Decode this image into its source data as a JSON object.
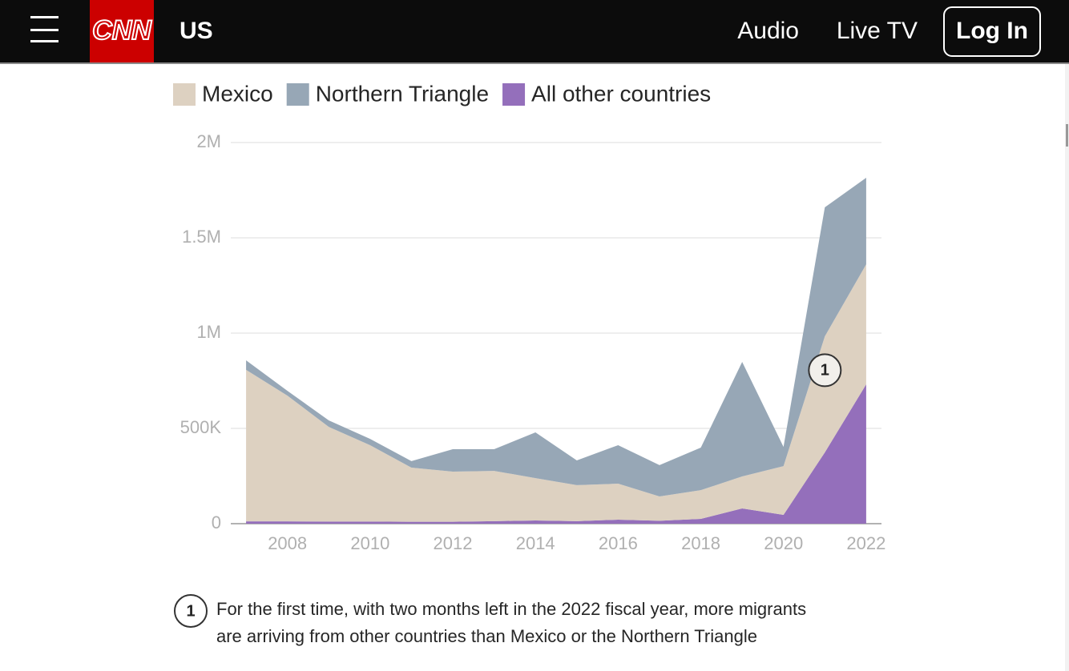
{
  "nav": {
    "brand": "CNN",
    "section": "US",
    "links": [
      "Audio",
      "Live TV"
    ],
    "login": "Log In"
  },
  "chart_data": {
    "type": "area",
    "stacked": true,
    "x": [
      2007,
      2008,
      2009,
      2010,
      2011,
      2012,
      2013,
      2014,
      2015,
      2016,
      2017,
      2018,
      2019,
      2020,
      2021,
      2022
    ],
    "series": [
      {
        "name": "Mexico",
        "color": "#ddd1c1",
        "values": [
          795000,
          660000,
          497000,
          401000,
          284000,
          263000,
          264000,
          222000,
          189000,
          189000,
          128000,
          151000,
          168000,
          256000,
          609000,
          630000
        ]
      },
      {
        "name": "Northern Triangle",
        "color": "#97a7b6",
        "values": [
          50000,
          25000,
          34000,
          33000,
          34000,
          118000,
          114000,
          240000,
          130000,
          202000,
          164000,
          223000,
          601000,
          101000,
          677000,
          454000
        ]
      },
      {
        "name": "All other countries",
        "color": "#946fbb",
        "values": [
          12000,
          12000,
          11000,
          11000,
          10000,
          10000,
          13000,
          17000,
          13000,
          21000,
          15000,
          25000,
          80000,
          46000,
          374000,
          731000
        ]
      }
    ],
    "xlim": [
      2006.63,
      2022.37
    ],
    "xticks": [
      2008,
      2010,
      2012,
      2014,
      2016,
      2018,
      2020,
      2022
    ],
    "ylim": [
      0,
      2000000
    ],
    "yticks": [
      0,
      {
        "value": 500000,
        "label": "500K"
      },
      {
        "value": 1000000,
        "label": "1M"
      },
      {
        "value": 1500000,
        "label": "1.5M"
      },
      {
        "value": 2000000,
        "label": "2M"
      }
    ],
    "grid": true,
    "annotations": [
      {
        "label": "1",
        "x": 2021,
        "y": 805000
      }
    ],
    "note": {
      "lines": [
        "For the first time, with two months left in the 2022 fiscal year, more migrants",
        "are arriving from other countries than Mexico or the Northern Triangle"
      ]
    }
  }
}
